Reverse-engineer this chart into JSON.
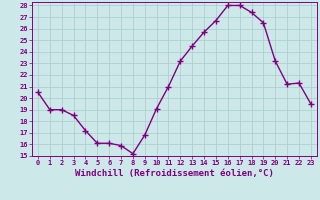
{
  "x": [
    0,
    1,
    2,
    3,
    4,
    5,
    6,
    7,
    8,
    9,
    10,
    11,
    12,
    13,
    14,
    15,
    16,
    17,
    18,
    19,
    20,
    21,
    22,
    23
  ],
  "y": [
    20.5,
    19.0,
    19.0,
    18.5,
    17.2,
    16.1,
    16.1,
    15.9,
    15.2,
    16.8,
    19.1,
    21.0,
    23.2,
    24.5,
    25.7,
    26.7,
    28.0,
    28.0,
    27.4,
    26.5,
    23.2,
    21.2,
    21.3,
    19.5
  ],
  "color": "#800080",
  "marker": "+",
  "markersize": 4,
  "markeredgewidth": 1.0,
  "linewidth": 1.0,
  "xlim": [
    -0.5,
    23.5
  ],
  "ylim": [
    15,
    28.3
  ],
  "yticks": [
    15,
    16,
    17,
    18,
    19,
    20,
    21,
    22,
    23,
    24,
    25,
    26,
    27,
    28
  ],
  "xticks": [
    0,
    1,
    2,
    3,
    4,
    5,
    6,
    7,
    8,
    9,
    10,
    11,
    12,
    13,
    14,
    15,
    16,
    17,
    18,
    19,
    20,
    21,
    22,
    23
  ],
  "xlabel": "Windchill (Refroidissement éolien,°C)",
  "bg_color": "#cce8e8",
  "grid_color": "#aacccc",
  "text_color": "#800080",
  "tick_fontsize": 5.0,
  "xlabel_fontsize": 6.5,
  "label_fontweight": "bold"
}
